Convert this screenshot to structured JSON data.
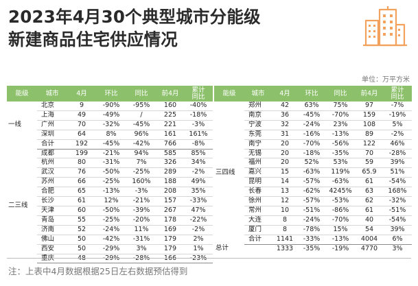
{
  "title_line1": "2023年4月30个典型城市分能级",
  "title_line2": "新建商品住宅供应情况",
  "unit": "单位：万平方米",
  "note": "注：上表中4月数据根据25日左右数据预估得到",
  "headers": {
    "tier": "能级",
    "city": "城市",
    "apr": "4月",
    "mom": "环比",
    "yoy": "同比",
    "first4": "前4月",
    "cum_yoy_1": "累计",
    "cum_yoy_2": "同比"
  },
  "left_tiers": {
    "tier1": "一线",
    "tier23": "二三线"
  },
  "right_tiers": {
    "tier34": "三四线",
    "total": "总计"
  },
  "left_rows": [
    {
      "city": "北京",
      "apr": "9",
      "mom": "-90%",
      "yoy": "-95%",
      "first4": "160",
      "cum": "-40%"
    },
    {
      "city": "上海",
      "apr": "49",
      "mom": "-49%",
      "yoy": "/",
      "first4": "225",
      "cum": "-18%"
    },
    {
      "city": "广州",
      "apr": "70",
      "mom": "-32%",
      "yoy": "-45%",
      "first4": "221",
      "cum": "-3%"
    },
    {
      "city": "深圳",
      "apr": "64",
      "mom": "8%",
      "yoy": "96%",
      "first4": "161",
      "cum": "161%"
    },
    {
      "city": "合计",
      "apr": "192",
      "mom": "-45%",
      "yoy": "-42%",
      "first4": "766",
      "cum": "-8%"
    },
    {
      "city": "成都",
      "apr": "199",
      "mom": "-21%",
      "yoy": "94%",
      "first4": "585",
      "cum": "85%"
    },
    {
      "city": "杭州",
      "apr": "80",
      "mom": "-31%",
      "yoy": "7%",
      "first4": "326",
      "cum": "34%"
    },
    {
      "city": "武汉",
      "apr": "76",
      "mom": "-50%",
      "yoy": "-25%",
      "first4": "289",
      "cum": "-2%"
    },
    {
      "city": "苏州",
      "apr": "66",
      "mom": "-25%",
      "yoy": "160%",
      "first4": "188",
      "cum": "49%"
    },
    {
      "city": "合肥",
      "apr": "65",
      "mom": "-13%",
      "yoy": "-3%",
      "first4": "208",
      "cum": "35%"
    },
    {
      "city": "长沙",
      "apr": "61",
      "mom": "12%",
      "yoy": "-21%",
      "first4": "157",
      "cum": "-33%"
    },
    {
      "city": "天津",
      "apr": "60",
      "mom": "-50%",
      "yoy": "-39%",
      "first4": "267",
      "cum": "47%"
    },
    {
      "city": "青岛",
      "apr": "55",
      "mom": "-25%",
      "yoy": "-20%",
      "first4": "178",
      "cum": "-22%"
    },
    {
      "city": "济南",
      "apr": "52",
      "mom": "-24%",
      "yoy": "11%",
      "first4": "169",
      "cum": "-2%"
    },
    {
      "city": "佛山",
      "apr": "50",
      "mom": "-42%",
      "yoy": "-31%",
      "first4": "179",
      "cum": "2%"
    },
    {
      "city": "西安",
      "apr": "50",
      "mom": "-29%",
      "yoy": "3%",
      "first4": "179",
      "cum": "1%"
    },
    {
      "city": "重庆",
      "apr": "48",
      "mom": "-29%",
      "yoy": "-28%",
      "first4": "166",
      "cum": "-23%"
    }
  ],
  "right_rows": [
    {
      "city": "郑州",
      "apr": "42",
      "mom": "63%",
      "yoy": "75%",
      "first4": "97",
      "cum": "-7%"
    },
    {
      "city": "南京",
      "apr": "36",
      "mom": "-45%",
      "yoy": "-70%",
      "first4": "159",
      "cum": "-19%"
    },
    {
      "city": "宁波",
      "apr": "32",
      "mom": "-24%",
      "yoy": "23%",
      "first4": "108",
      "cum": "5%"
    },
    {
      "city": "东莞",
      "apr": "31",
      "mom": "-16%",
      "yoy": "-13%",
      "first4": "89",
      "cum": "-2%"
    },
    {
      "city": "南宁",
      "apr": "20",
      "mom": "-70%",
      "yoy": "-56%",
      "first4": "122",
      "cum": "46%"
    },
    {
      "city": "无锡",
      "apr": "20",
      "mom": "-18%",
      "yoy": "-35%",
      "first4": "70",
      "cum": "-28%"
    },
    {
      "city": "福州",
      "apr": "20",
      "mom": "52%",
      "yoy": "53%",
      "first4": "59",
      "cum": "39%"
    },
    {
      "city": "嘉兴",
      "apr": "15",
      "mom": "-63%",
      "yoy": "119%",
      "first4": "65.9",
      "cum": "51%"
    },
    {
      "city": "昆明",
      "apr": "14",
      "mom": "-57%",
      "yoy": "-63%",
      "first4": "61",
      "cum": "-54%"
    },
    {
      "city": "长春",
      "apr": "13",
      "mom": "-62%",
      "yoy": "4245%",
      "first4": "63",
      "cum": "168%"
    },
    {
      "city": "徐州",
      "apr": "12",
      "mom": "-57%",
      "yoy": "-53%",
      "first4": "62",
      "cum": "-32%"
    },
    {
      "city": "常州",
      "apr": "10",
      "mom": "-51%",
      "yoy": "-86%",
      "first4": "61",
      "cum": "-51%"
    },
    {
      "city": "大连",
      "apr": "8",
      "mom": "-24%",
      "yoy": "-70%",
      "first4": "40",
      "cum": "-54%"
    },
    {
      "city": "厦门",
      "apr": "8",
      "mom": "-78%",
      "yoy": "15%",
      "first4": "54",
      "cum": "39%"
    },
    {
      "city": "合计",
      "apr": "1141",
      "mom": "-33%",
      "yoy": "-13%",
      "first4": "4004",
      "cum": "6%"
    }
  ],
  "total_row": {
    "apr": "1333",
    "mom": "-35%",
    "yoy": "-19%",
    "first4": "4770",
    "cum": "3%"
  },
  "colors": {
    "header_green": "#8cc06b",
    "logo_orange": "#f2a25c"
  },
  "logo_icon": "city-buildings-icon"
}
